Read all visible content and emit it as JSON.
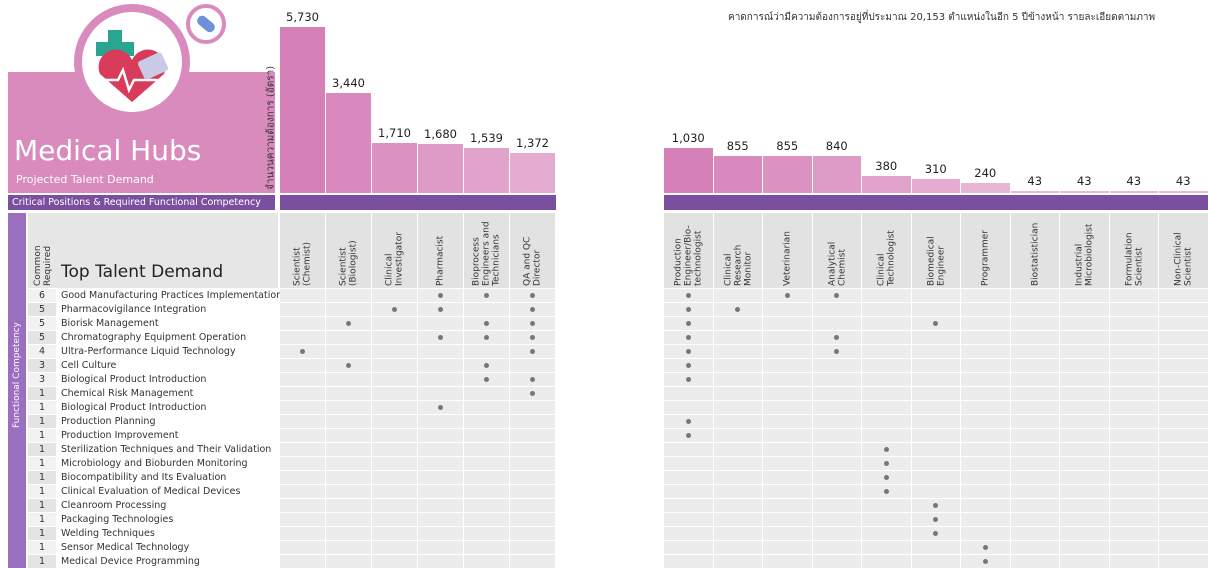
{
  "header": {
    "title": "Medical Hubs",
    "subtitle": "Projected Talent Demand",
    "band": "Critical Positions & Required Functional Competency",
    "axis_label": "จำนวนความต้องการ (อัตรา)",
    "note": "คาดการณ์ว่ามีความต้องการอยู่ที่ประมาณ 20,153 ตำแหน่งในอีก 5 ปีข้างหน้า รายละเอียดตามภาพ"
  },
  "table": {
    "count_header": "Common Required",
    "name_header": "Top Talent Demand",
    "side_label": "Functional Competency",
    "positions": [
      {
        "name": "Scientist (Chemist)",
        "demand": 5730,
        "demand_label": "5,730"
      },
      {
        "name": "Scientist (Biologist)",
        "demand": 3440,
        "demand_label": "3,440"
      },
      {
        "name": "Clinical Investigator",
        "demand": 1710,
        "demand_label": "1,710"
      },
      {
        "name": "Pharmacist",
        "demand": 1680,
        "demand_label": "1,680"
      },
      {
        "name": "Bioprocess Engineers and Technicians",
        "demand": 1539,
        "demand_label": "1,539"
      },
      {
        "name": "QA and QC Director",
        "demand": 1372,
        "demand_label": "1,372"
      },
      {
        "name": "Production Engineer/Bio-technologist",
        "demand": 1030,
        "demand_label": "1,030"
      },
      {
        "name": "Clinical Research Monitor",
        "demand": 855
      },
      {
        "name": "Veterinarian",
        "demand": 855
      },
      {
        "name": "Analytical Chemist",
        "demand": 840
      },
      {
        "name": "Clinical Technologist",
        "demand": 380
      },
      {
        "name": "Biomedical Engineer",
        "demand": 310
      },
      {
        "name": "Programmer",
        "demand": 240
      },
      {
        "name": "Biostatistician",
        "demand": 43
      },
      {
        "name": "Industrial Microbiologist",
        "demand": 43
      },
      {
        "name": "Formulation Scientist",
        "demand": 43
      },
      {
        "name": "Non-Clinical Scientist",
        "demand": 43
      }
    ],
    "rows": [
      {
        "count": 6,
        "competency": "Good Manufacturing Practices Implementation",
        "positions": [
          3,
          4,
          5,
          6,
          8,
          9
        ]
      },
      {
        "count": 5,
        "competency": "Pharmacovigilance Integration",
        "positions": [
          2,
          3,
          5,
          6,
          7
        ]
      },
      {
        "count": 5,
        "competency": "Biorisk Management",
        "positions": [
          1,
          4,
          5,
          6,
          11
        ]
      },
      {
        "count": 5,
        "competency": "Chromatography Equipment Operation",
        "positions": [
          3,
          4,
          5,
          6,
          9
        ]
      },
      {
        "count": 4,
        "competency": "Ultra-Performance Liquid Technology",
        "positions": [
          0,
          5,
          6,
          9
        ]
      },
      {
        "count": 3,
        "competency": "Cell Culture",
        "positions": [
          1,
          4,
          6
        ]
      },
      {
        "count": 3,
        "competency": "Biological Product Introduction",
        "positions": [
          4,
          5,
          6
        ]
      },
      {
        "count": 1,
        "competency": "Chemical Risk Management",
        "positions": [
          5
        ]
      },
      {
        "count": 1,
        "competency": "Biological Product Introduction",
        "positions": [
          3
        ]
      },
      {
        "count": 1,
        "competency": "Production Planning",
        "positions": [
          6
        ]
      },
      {
        "count": 1,
        "competency": "Production Improvement",
        "positions": [
          6
        ]
      },
      {
        "count": 1,
        "competency": "Sterilization Techniques and Their Validation",
        "positions": [
          10
        ]
      },
      {
        "count": 1,
        "competency": "Microbiology and Bioburden Monitoring",
        "positions": [
          10
        ]
      },
      {
        "count": 1,
        "competency": "Biocompatibility and Its Evaluation",
        "positions": [
          10
        ]
      },
      {
        "count": 1,
        "competency": "Clinical Evaluation of Medical Devices",
        "positions": [
          10
        ]
      },
      {
        "count": 1,
        "competency": "Cleanroom Processing",
        "positions": [
          11
        ]
      },
      {
        "count": 1,
        "competency": "Packaging Technologies",
        "positions": [
          11
        ]
      },
      {
        "count": 1,
        "competency": "Welding Techniques",
        "positions": [
          11
        ]
      },
      {
        "count": 1,
        "competency": "Sensor Medical Technology",
        "positions": [
          12
        ]
      },
      {
        "count": 1,
        "competency": "Medical Device Programming",
        "positions": [
          12
        ]
      }
    ]
  }
}
